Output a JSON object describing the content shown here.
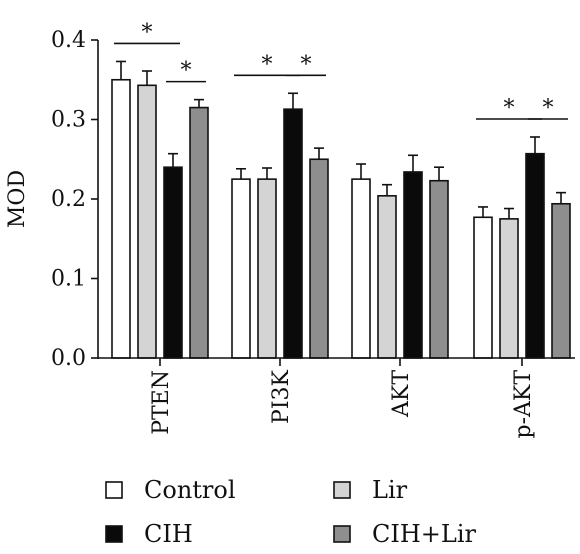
{
  "chart_data": {
    "type": "bar",
    "ylabel": "MOD",
    "ylim": [
      0,
      0.4
    ],
    "yticks": [
      "0.0",
      "0.1",
      "0.2",
      "0.3",
      "0.4"
    ],
    "categories": [
      "PTEN",
      "PI3K",
      "AKT",
      "p-AKT"
    ],
    "series": [
      {
        "name": "Control",
        "color": "#ffffff",
        "values": [
          0.35,
          0.225,
          0.225,
          0.177
        ],
        "errors": [
          0.023,
          0.013,
          0.019,
          0.013
        ]
      },
      {
        "name": "Lir",
        "color": "#d4d4d4",
        "values": [
          0.343,
          0.225,
          0.204,
          0.175
        ],
        "errors": [
          0.018,
          0.014,
          0.014,
          0.013
        ]
      },
      {
        "name": "CIH",
        "color": "#0a0a0a",
        "values": [
          0.24,
          0.313,
          0.234,
          0.257
        ],
        "errors": [
          0.017,
          0.02,
          0.021,
          0.021
        ]
      },
      {
        "name": "CIH+Lir",
        "color": "#8e8e8e",
        "values": [
          0.315,
          0.25,
          0.223,
          0.194
        ],
        "errors": [
          0.01,
          0.014,
          0.017,
          0.014
        ]
      }
    ],
    "significance": [
      {
        "category": 0,
        "from": 0,
        "to": 2,
        "label": "*"
      },
      {
        "category": 0,
        "from": 2,
        "to": 3,
        "label": "*"
      },
      {
        "category": 1,
        "from": 0,
        "to": 2,
        "label": "*"
      },
      {
        "category": 1,
        "from": 2,
        "to": 3,
        "label": "*"
      },
      {
        "category": 3,
        "from": 0,
        "to": 2,
        "label": "*"
      },
      {
        "category": 3,
        "from": 2,
        "to": 3,
        "label": "*"
      }
    ],
    "legend": {
      "placement": "bottom",
      "columns": 2
    }
  }
}
